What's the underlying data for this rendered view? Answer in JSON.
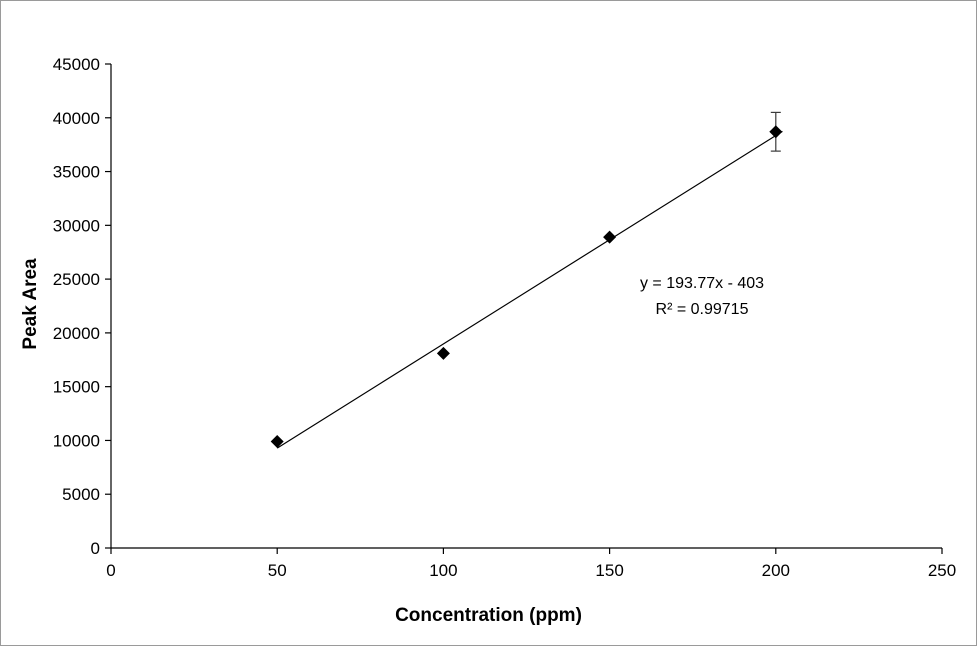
{
  "chart_data": {
    "type": "scatter",
    "title": "",
    "xlabel": "Concentration (ppm)",
    "ylabel": "Peak Area",
    "xlim": [
      0,
      250
    ],
    "ylim": [
      0,
      45000
    ],
    "xticks": [
      0,
      50,
      100,
      150,
      200,
      250
    ],
    "yticks": [
      0,
      5000,
      10000,
      15000,
      20000,
      25000,
      30000,
      35000,
      40000,
      45000
    ],
    "grid": false,
    "legend": false,
    "series": [
      {
        "name": "Peak Area calibration points",
        "marker": "diamond",
        "color": "#000000",
        "points": [
          {
            "x": 50,
            "y": 9900
          },
          {
            "x": 100,
            "y": 18100
          },
          {
            "x": 150,
            "y": 28900
          },
          {
            "x": 200,
            "y": 38700,
            "error_plus": 1800,
            "error_minus": 1800
          }
        ]
      }
    ],
    "trendline": {
      "slope": 193.77,
      "intercept": -403,
      "x_range": [
        50,
        202
      ],
      "color": "#000000"
    },
    "annotation": {
      "equation": "y = 193.77x - 403",
      "r_squared": "R² = 0.99715"
    },
    "colors": {
      "axis": "#000000",
      "text": "#000000",
      "error_bar": "#3a3a3a"
    }
  }
}
